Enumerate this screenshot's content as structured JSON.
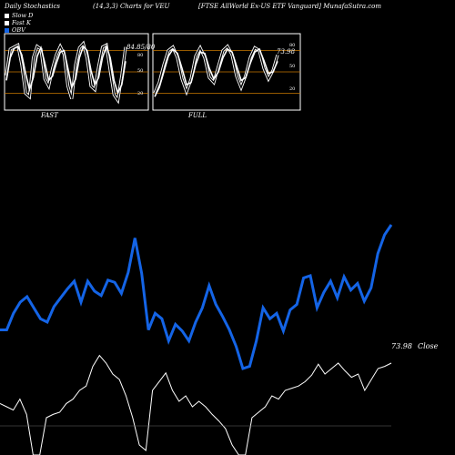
{
  "header": {
    "left": "Daily Stochastics",
    "middle": "(14,3,3) Charts for VEU",
    "right": "[FTSE AllWorld Ex-US ETF Vanguard] MunafaSutra.com"
  },
  "legend": [
    {
      "label": "Slow D",
      "color": "#ffffff"
    },
    {
      "label": "Fast K",
      "color": "#ffffff"
    },
    {
      "label": "OBV",
      "color": "#1464e6"
    }
  ],
  "panels": [
    {
      "name": "FAST",
      "value_label": "84.85/80",
      "ticks": [
        "80",
        "50",
        "20"
      ]
    },
    {
      "name": "FULL",
      "value_label": "73.98",
      "ticks": [
        "80",
        "50",
        "20"
      ]
    }
  ],
  "colors": {
    "obv": "#1464e6",
    "price": "#ffffff",
    "level_lines": "#c87800",
    "background": "#000000"
  },
  "chart_data": [
    {
      "type": "line",
      "title": "FAST",
      "ylim": [
        0,
        100
      ],
      "levels": [
        80,
        50,
        20
      ],
      "series": [
        {
          "name": "Fast K",
          "values": [
            45,
            82,
            85,
            88,
            60,
            20,
            15,
            70,
            86,
            82,
            40,
            30,
            55,
            74,
            86,
            75,
            30,
            12,
            60,
            84,
            90,
            70,
            30,
            25,
            58,
            85,
            88,
            52,
            18,
            10,
            45,
            85
          ]
        },
        {
          "name": "Slow D",
          "values": [
            38,
            70,
            83,
            86,
            74,
            48,
            25,
            42,
            72,
            84,
            62,
            38,
            44,
            62,
            78,
            80,
            55,
            28,
            40,
            70,
            86,
            80,
            52,
            32,
            42,
            70,
            86,
            70,
            38,
            20,
            32,
            65
          ]
        }
      ]
    },
    {
      "type": "line",
      "title": "FULL",
      "ylim": [
        0,
        100
      ],
      "levels": [
        80,
        50,
        20
      ],
      "series": [
        {
          "name": "Fast K",
          "values": [
            20,
            35,
            60,
            80,
            85,
            70,
            40,
            22,
            40,
            72,
            84,
            70,
            42,
            35,
            58,
            80,
            86,
            74,
            44,
            28,
            45,
            70,
            84,
            80,
            55,
            40,
            52,
            74
          ]
        },
        {
          "name": "Slow D",
          "values": [
            15,
            28,
            50,
            72,
            82,
            76,
            55,
            32,
            35,
            60,
            78,
            76,
            55,
            40,
            50,
            70,
            82,
            78,
            58,
            38,
            42,
            62,
            78,
            82,
            66,
            48,
            50,
            65
          ]
        }
      ]
    },
    {
      "type": "line",
      "title": "",
      "price_label": "73.98",
      "close_label": "Close",
      "series": [
        {
          "name": "OBV",
          "values": [
            35,
            35,
            50,
            60,
            65,
            55,
            45,
            42,
            56,
            64,
            72,
            79,
            60,
            79,
            70,
            66,
            80,
            78,
            68,
            87,
            118,
            86,
            35,
            50,
            45,
            25,
            40,
            34,
            25,
            42,
            55,
            75,
            58,
            47,
            35,
            20,
            0,
            2,
            25,
            55,
            45,
            50,
            34,
            53,
            58,
            82,
            84,
            55,
            69,
            79,
            64,
            83,
            71,
            77,
            61,
            73,
            104,
            121,
            130
          ]
        },
        {
          "name": "Price",
          "values": [
            18,
            15,
            12,
            22,
            8,
            -90,
            -85,
            5,
            8,
            10,
            18,
            22,
            30,
            34,
            52,
            62,
            55,
            45,
            40,
            25,
            5,
            -20,
            -25,
            30,
            38,
            46,
            30,
            20,
            25,
            15,
            20,
            15,
            8,
            2,
            -5,
            -20,
            -45,
            -30,
            5,
            10,
            15,
            25,
            22,
            30,
            32,
            34,
            38,
            44,
            54,
            45,
            50,
            55,
            48,
            42,
            45,
            30,
            40,
            50,
            52,
            55
          ]
        }
      ]
    }
  ]
}
